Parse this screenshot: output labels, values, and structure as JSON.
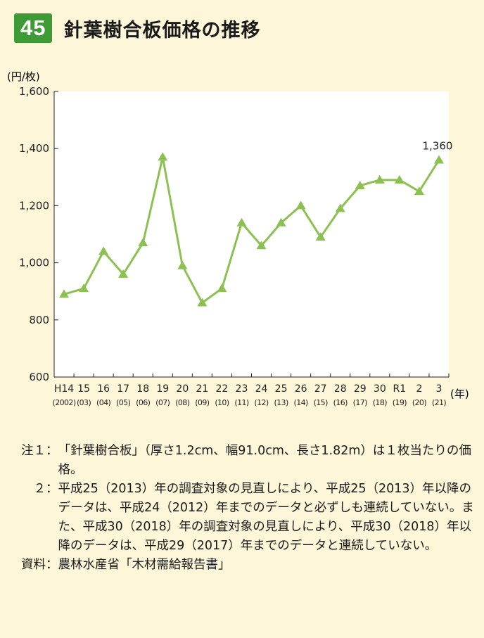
{
  "figure": {
    "number": "45",
    "title": "針葉樹合板価格の推移"
  },
  "chart_data": {
    "type": "line",
    "ylabel": "(円/枚)",
    "xlabel": "(年)",
    "ylim": [
      600,
      1600
    ],
    "yticks": [
      600,
      800,
      1000,
      1200,
      1400,
      1600
    ],
    "ytick_labels": [
      "600",
      "800",
      "1,000",
      "1,200",
      "1,400",
      "1,600"
    ],
    "categories": [
      "H14",
      "15",
      "16",
      "17",
      "18",
      "19",
      "20",
      "21",
      "22",
      "23",
      "24",
      "25",
      "26",
      "27",
      "28",
      "29",
      "30",
      "R1",
      "2",
      "3"
    ],
    "categories_sub": [
      "(2002)",
      "(03)",
      "(04)",
      "(05)",
      "(06)",
      "(07)",
      "(08)",
      "(09)",
      "(10)",
      "(11)",
      "(12)",
      "(13)",
      "(14)",
      "(15)",
      "(16)",
      "(17)",
      "(18)",
      "(19)",
      "(20)",
      "(21)"
    ],
    "series": [
      {
        "values": [
          890,
          910,
          1040,
          960,
          1070,
          1370,
          990,
          860,
          910,
          1140,
          1060,
          1140,
          1200,
          1090,
          1190,
          1270,
          1290,
          1290,
          1250,
          1360
        ],
        "color": "#8cc152",
        "marker": "triangle"
      }
    ],
    "annotations": [
      {
        "index": 19,
        "text": "1,360"
      }
    ],
    "grid": false,
    "plot_background": "#ffffff"
  },
  "notes": [
    {
      "label": "注１：",
      "text": "「針葉樹合板」（厚さ1.2cm、幅91.0cm、長さ1.82m）は１枚当たりの価格。"
    },
    {
      "label": "　２：",
      "text": "平成25（2013）年の調査対象の見直しにより、平成25（2013）年以降のデータは、平成24（2012）年までのデータと必ずしも連続していない。また、平成30（2018）年の調査対象の見直しにより、平成30（2018）年以降のデータは、平成29（2017）年までのデータと連続していない。"
    },
    {
      "label": "資料：",
      "text": "農林水産省「木材需給報告書」"
    }
  ]
}
